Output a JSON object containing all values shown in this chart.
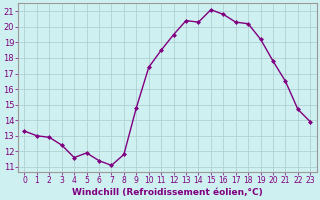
{
  "x": [
    0,
    1,
    2,
    3,
    4,
    5,
    6,
    7,
    8,
    9,
    10,
    11,
    12,
    13,
    14,
    15,
    16,
    17,
    18,
    19,
    20,
    21,
    22,
    23
  ],
  "y": [
    13.3,
    13.0,
    12.9,
    12.4,
    11.6,
    11.9,
    11.4,
    11.1,
    11.8,
    14.8,
    17.4,
    18.5,
    19.5,
    20.4,
    20.3,
    21.1,
    20.8,
    20.3,
    20.2,
    19.2,
    17.8,
    16.5,
    14.7,
    13.9
  ],
  "line_color": "#800080",
  "marker": "D",
  "marker_size": 2,
  "linewidth": 1.0,
  "bg_color": "#cff0f0",
  "grid_color": "#aacccc",
  "xlabel": "Windchill (Refroidissement éolien,°C)",
  "ylabel_ticks": [
    11,
    12,
    13,
    14,
    15,
    16,
    17,
    18,
    19,
    20,
    21
  ],
  "xlim": [
    -0.5,
    23.5
  ],
  "ylim": [
    10.7,
    21.5
  ],
  "tick_color": "#800080",
  "label_color": "#800080",
  "xlabel_fontsize": 6.5,
  "ytick_fontsize": 6,
  "xtick_fontsize": 5.5,
  "spine_color": "#999999"
}
